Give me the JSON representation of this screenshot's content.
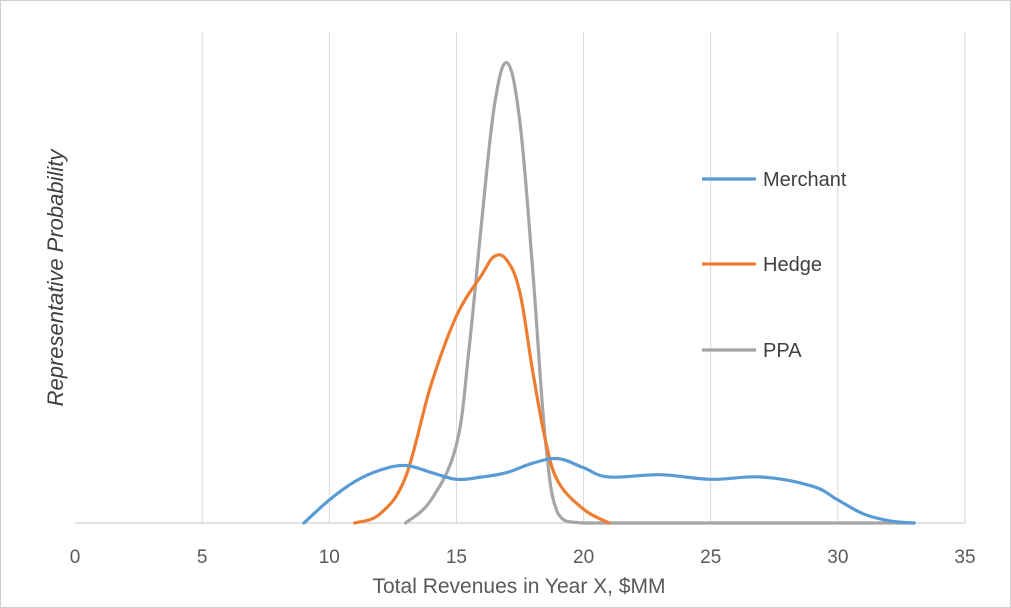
{
  "chart_data": {
    "type": "line",
    "title": "",
    "xlabel": "Total Revenues in Year X, $MM",
    "ylabel": "Representative Probability",
    "xlim": [
      0,
      35
    ],
    "ylim": [
      0,
      1
    ],
    "x_ticks": [
      0,
      5,
      10,
      15,
      20,
      25,
      30,
      35
    ],
    "x_tick_labels": [
      "0",
      "5",
      "10",
      "15",
      "20",
      "25",
      "30",
      "35"
    ],
    "y_ticks_shown": false,
    "grid": "vertical",
    "legend_position": "right",
    "series": [
      {
        "name": "Merchant",
        "color": "#5B9BD5",
        "points": [
          [
            9,
            0
          ],
          [
            10,
            0.05
          ],
          [
            11,
            0.09
          ],
          [
            12,
            0.115
          ],
          [
            13,
            0.125
          ],
          [
            14,
            0.11
          ],
          [
            15,
            0.095
          ],
          [
            16,
            0.1
          ],
          [
            17,
            0.11
          ],
          [
            18,
            0.13
          ],
          [
            19,
            0.14
          ],
          [
            20,
            0.12
          ],
          [
            21,
            0.1
          ],
          [
            23,
            0.105
          ],
          [
            25,
            0.095
          ],
          [
            27,
            0.1
          ],
          [
            29,
            0.08
          ],
          [
            30,
            0.05
          ],
          [
            31,
            0.02
          ],
          [
            32,
            0.005
          ],
          [
            33,
            0
          ]
        ]
      },
      {
        "name": "Hedge",
        "color": "#ED7D31",
        "points": [
          [
            11,
            0
          ],
          [
            12,
            0.02
          ],
          [
            13,
            0.1
          ],
          [
            14,
            0.3
          ],
          [
            15,
            0.45
          ],
          [
            16,
            0.54
          ],
          [
            16.5,
            0.58
          ],
          [
            17,
            0.57
          ],
          [
            17.5,
            0.5
          ],
          [
            18,
            0.33
          ],
          [
            18.5,
            0.18
          ],
          [
            19,
            0.09
          ],
          [
            20,
            0.03
          ],
          [
            21,
            0
          ]
        ]
      },
      {
        "name": "PPA",
        "color": "#A5A5A5",
        "points": [
          [
            13,
            0
          ],
          [
            14,
            0.05
          ],
          [
            15,
            0.17
          ],
          [
            15.5,
            0.38
          ],
          [
            16,
            0.66
          ],
          [
            16.5,
            0.91
          ],
          [
            17,
            1.0
          ],
          [
            17.5,
            0.87
          ],
          [
            18,
            0.55
          ],
          [
            18.5,
            0.18
          ],
          [
            19,
            0.02
          ],
          [
            20,
            0
          ],
          [
            23,
            0
          ],
          [
            33,
            0
          ]
        ]
      }
    ]
  }
}
